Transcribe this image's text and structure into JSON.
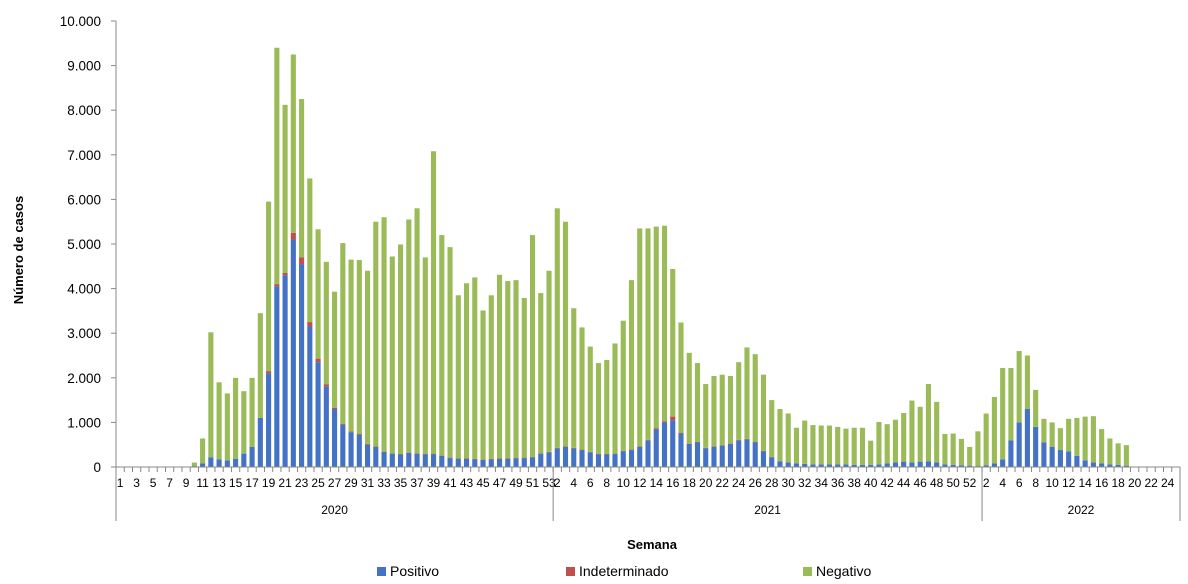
{
  "chart_data": {
    "type": "bar",
    "stacked": true,
    "ylabel": "Número de casos",
    "xlabel": "Semana",
    "ylim": [
      0,
      10000
    ],
    "yticks": [
      "0",
      "1.000",
      "2.000",
      "3.000",
      "4.000",
      "5.000",
      "6.000",
      "7.000",
      "8.000",
      "9.000",
      "10.000"
    ],
    "grid": false,
    "legend_position": "bottom",
    "years": [
      {
        "label": "2020",
        "weeks": 53
      },
      {
        "label": "2021",
        "weeks": 52
      },
      {
        "label": "2022",
        "weeks": 24
      }
    ],
    "week_labels": [
      "1",
      "3",
      "5",
      "7",
      "9",
      "11",
      "13",
      "15",
      "17",
      "19",
      "21",
      "23",
      "25",
      "27",
      "29",
      "31",
      "33",
      "35",
      "37",
      "39",
      "41",
      "43",
      "45",
      "47",
      "49",
      "51",
      "53",
      "2",
      "4",
      "6",
      "8",
      "10",
      "12",
      "14",
      "16",
      "18",
      "20",
      "22",
      "24",
      "26",
      "28",
      "30",
      "32",
      "34",
      "36",
      "38",
      "40",
      "42",
      "44",
      "46",
      "48",
      "50",
      "52",
      "2",
      "4",
      "6",
      "8",
      "10",
      "12",
      "14",
      "16",
      "18",
      "20",
      "22",
      "24"
    ],
    "series": [
      {
        "name": "Positivo",
        "color": "#4472C4",
        "values": [
          0,
          0,
          0,
          0,
          0,
          0,
          0,
          0,
          0,
          20,
          80,
          220,
          170,
          150,
          180,
          300,
          450,
          1100,
          2100,
          4050,
          4300,
          5100,
          4550,
          3150,
          2350,
          1800,
          1300,
          950,
          780,
          720,
          500,
          450,
          340,
          300,
          280,
          320,
          300,
          280,
          290,
          250,
          200,
          180,
          180,
          170,
          160,
          170,
          180,
          180,
          190,
          200,
          220,
          300,
          330,
          420,
          450,
          420,
          380,
          330,
          280,
          280,
          290,
          350,
          380,
          450,
          600,
          850,
          1000,
          1050,
          750,
          520,
          550,
          420,
          450,
          480,
          520,
          600,
          620,
          550,
          350,
          220,
          130,
          100,
          80,
          70,
          60,
          60,
          60,
          60,
          60,
          50,
          50,
          50,
          60,
          80,
          100,
          120,
          100,
          120,
          130,
          100,
          60,
          50,
          40,
          30,
          20,
          40,
          80,
          170,
          600,
          1000,
          1300,
          900,
          550,
          450,
          380,
          350,
          250,
          150,
          100,
          80,
          60,
          50,
          30,
          0,
          0,
          0,
          0,
          0,
          0
        ]
      },
      {
        "name": "Indeterminado",
        "color": "#C0504D",
        "values": [
          0,
          0,
          0,
          0,
          0,
          0,
          0,
          0,
          0,
          0,
          0,
          0,
          0,
          0,
          0,
          0,
          0,
          0,
          50,
          50,
          50,
          150,
          150,
          100,
          80,
          50,
          30,
          20,
          20,
          20,
          20,
          10,
          10,
          10,
          10,
          10,
          10,
          10,
          10,
          10,
          10,
          10,
          10,
          10,
          10,
          10,
          10,
          10,
          10,
          10,
          10,
          10,
          10,
          10,
          10,
          10,
          10,
          10,
          10,
          10,
          10,
          10,
          10,
          10,
          10,
          20,
          20,
          80,
          20,
          10,
          10,
          10,
          10,
          10,
          10,
          10,
          10,
          10,
          10,
          10,
          0,
          0,
          0,
          0,
          0,
          0,
          0,
          0,
          0,
          0,
          0,
          0,
          0,
          0,
          0,
          0,
          0,
          0,
          0,
          0,
          0,
          0,
          0,
          0,
          0,
          0,
          0,
          0,
          0,
          0,
          0,
          0,
          0,
          0,
          0,
          0,
          0,
          0,
          0,
          0,
          0,
          0,
          0,
          0,
          0,
          0,
          0,
          0,
          0
        ]
      },
      {
        "name": "Negativo",
        "color": "#9BBB59",
        "values": [
          0,
          0,
          0,
          0,
          0,
          0,
          0,
          0,
          0,
          80,
          560,
          2800,
          1730,
          1500,
          1820,
          1400,
          1550,
          2350,
          3800,
          5300,
          3770,
          4000,
          3550,
          3220,
          2900,
          2750,
          2600,
          4050,
          3850,
          3900,
          3880,
          5040,
          5250,
          4410,
          4700,
          5220,
          5490,
          4410,
          6780,
          4940,
          4720,
          3660,
          3930,
          4070,
          3340,
          3670,
          4120,
          3980,
          3990,
          3580,
          4970,
          3590,
          4060,
          5370,
          5040,
          3130,
          2740,
          2360,
          2040,
          2110,
          2470,
          2920,
          3800,
          4890,
          4740,
          4520,
          4390,
          3310,
          2470,
          2030,
          1770,
          1430,
          1580,
          1580,
          1510,
          1740,
          2050,
          1970,
          1710,
          1270,
          1170,
          1100,
          800,
          970,
          880,
          870,
          870,
          840,
          800,
          830,
          830,
          540,
          950,
          880,
          960,
          1090,
          1390,
          1230,
          1730,
          1360,
          680,
          700,
          590,
          420,
          780,
          1160,
          1490,
          2050,
          1620,
          1600,
          1200,
          830,
          530,
          550,
          490,
          730,
          850,
          980,
          1040,
          770,
          580,
          480,
          460,
          0,
          0,
          0,
          0,
          0,
          0
        ]
      }
    ]
  }
}
